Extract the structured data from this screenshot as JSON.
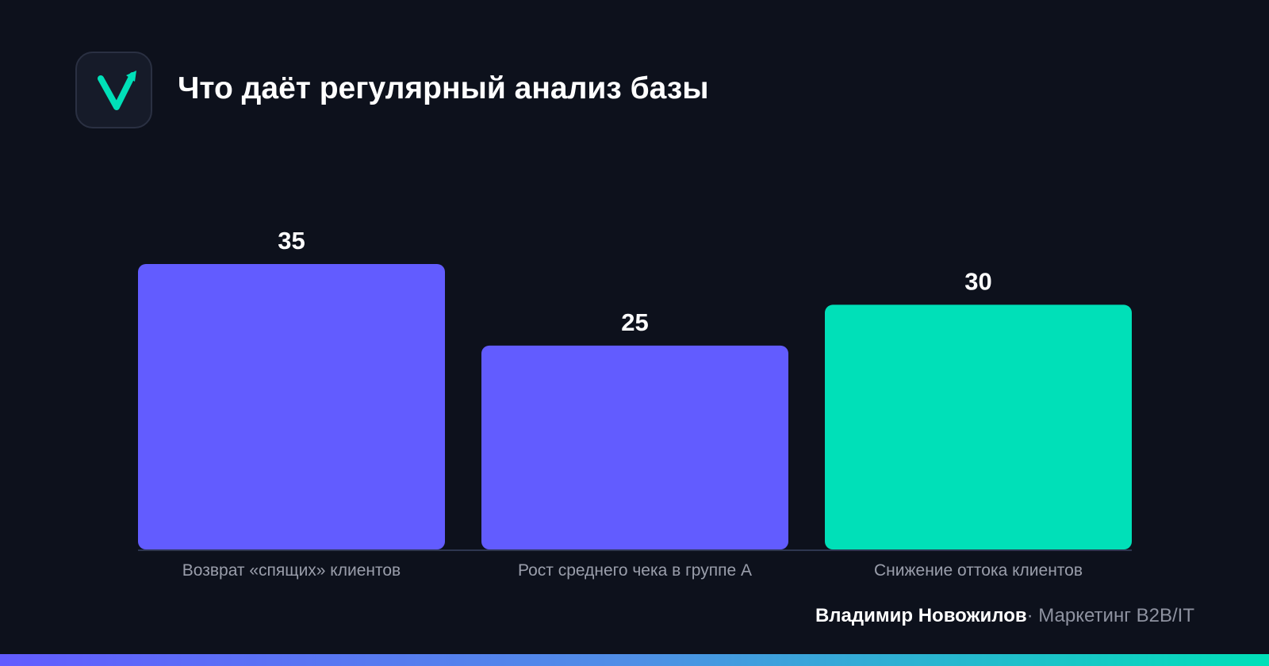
{
  "header": {
    "logo_icon": "checkmark-arrow-icon",
    "title": "Что даёт регулярный анализ базы"
  },
  "chart_data": {
    "type": "bar",
    "title": "Что даёт регулярный анализ базы",
    "xlabel": "",
    "ylabel": "",
    "ylim": [
      0,
      35
    ],
    "grid": false,
    "categories": [
      "Возврат «спящих» клиентов",
      "Рост среднего чека в группе А",
      "Снижение оттока клиентов"
    ],
    "values": [
      35,
      25,
      30
    ],
    "colors": [
      "#625cff",
      "#625cff",
      "#00e0b8"
    ]
  },
  "footer": {
    "author": "Владимир Новожилов",
    "separator": "·",
    "subtitle": "Маркетинг B2B/IT"
  },
  "colors": {
    "background": "#0d111c",
    "accent_primary": "#625cff",
    "accent_secondary": "#00e0b8",
    "axis": "#2e3650"
  }
}
